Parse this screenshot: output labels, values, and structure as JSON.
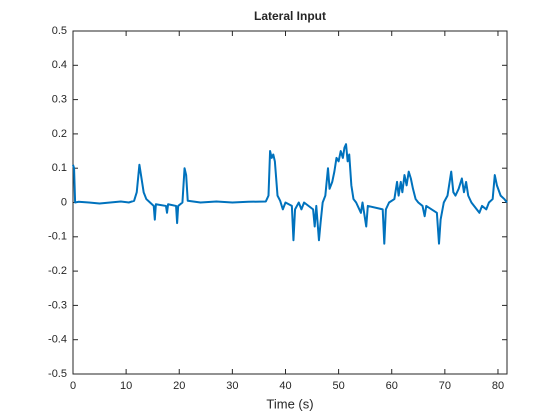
{
  "chart_data": {
    "type": "line",
    "title": "Lateral Input",
    "x_label": "Time (s)",
    "x": [
      0,
      0.2,
      0.4,
      1,
      3,
      5,
      7,
      9,
      10.5,
      11.5,
      12.0,
      12.5,
      12.8,
      13.3,
      13.8,
      14.5,
      15.2,
      15.4,
      15.6,
      17.5,
      17.7,
      17.9,
      19.4,
      19.6,
      19.8,
      20.6,
      21.0,
      21.3,
      21.6,
      24,
      27,
      30,
      33,
      36.3,
      36.8,
      37.1,
      37.4,
      37.7,
      38.0,
      38.5,
      39.0,
      39.5,
      40.0,
      41.2,
      41.5,
      41.8,
      42.5,
      43.0,
      43.5,
      45.2,
      45.5,
      45.8,
      46.3,
      46.6,
      47.0,
      47.5,
      48.0,
      48.3,
      48.8,
      49.2,
      49.6,
      50.0,
      50.4,
      50.8,
      51.1,
      51.4,
      51.7,
      52.0,
      52.4,
      52.8,
      53.3,
      54.2,
      54.5,
      55.2,
      55.5,
      58.3,
      58.6,
      58.9,
      59.5,
      60.5,
      61.0,
      61.3,
      61.7,
      62.0,
      62.4,
      62.8,
      63.2,
      63.6,
      64.0,
      64.5,
      65.0,
      65.8,
      66.2,
      66.5,
      68.5,
      68.9,
      69.2,
      69.8,
      70.5,
      71.2,
      71.6,
      72.0,
      72.6,
      73.2,
      73.6,
      74.0,
      74.4,
      75.0,
      76.5,
      77.0,
      77.8,
      78.3,
      79.0,
      79.4,
      79.8,
      80.5,
      81.2,
      81.7
    ],
    "series": [
      {
        "name": "Lateral Input",
        "color": "#0072bd",
        "values": [
          0.11,
          0.1,
          0.0,
          0.002,
          0.0,
          -0.003,
          0.0,
          0.003,
          0.0,
          0.005,
          0.03,
          0.11,
          0.08,
          0.03,
          0.01,
          0.0,
          -0.01,
          -0.05,
          -0.005,
          -0.01,
          -0.03,
          -0.005,
          -0.01,
          -0.06,
          -0.01,
          0.0,
          0.1,
          0.08,
          0.005,
          0.0,
          0.003,
          0.0,
          0.002,
          0.003,
          0.02,
          0.15,
          0.13,
          0.14,
          0.12,
          0.02,
          0.005,
          -0.02,
          0.0,
          -0.01,
          -0.11,
          -0.02,
          0.0,
          -0.02,
          0.0,
          -0.02,
          -0.07,
          -0.01,
          -0.11,
          -0.06,
          0.0,
          0.02,
          0.1,
          0.04,
          0.06,
          0.09,
          0.13,
          0.12,
          0.15,
          0.13,
          0.16,
          0.17,
          0.12,
          0.14,
          0.05,
          0.01,
          0.0,
          -0.03,
          0.0,
          -0.07,
          -0.01,
          -0.02,
          -0.12,
          -0.02,
          0.0,
          0.01,
          0.06,
          0.02,
          0.06,
          0.03,
          0.08,
          0.05,
          0.09,
          0.07,
          0.04,
          0.01,
          0.0,
          -0.01,
          -0.04,
          -0.01,
          -0.03,
          -0.12,
          -0.05,
          0.0,
          0.02,
          0.09,
          0.03,
          0.02,
          0.04,
          0.07,
          0.03,
          0.06,
          0.02,
          0.0,
          -0.03,
          -0.01,
          -0.02,
          0.0,
          0.01,
          0.08,
          0.05,
          0.02,
          0.01,
          0.0
        ]
      }
    ],
    "xlim": [
      0,
      81.7
    ],
    "xticks": [
      0,
      10,
      20,
      30,
      40,
      50,
      60,
      70,
      80
    ],
    "ylim": [
      -0.5,
      0.5
    ],
    "yticks": [
      -0.5,
      -0.4,
      -0.3,
      -0.2,
      -0.1,
      0,
      0.1,
      0.2,
      0.3,
      0.4,
      0.5
    ],
    "grid": false
  }
}
